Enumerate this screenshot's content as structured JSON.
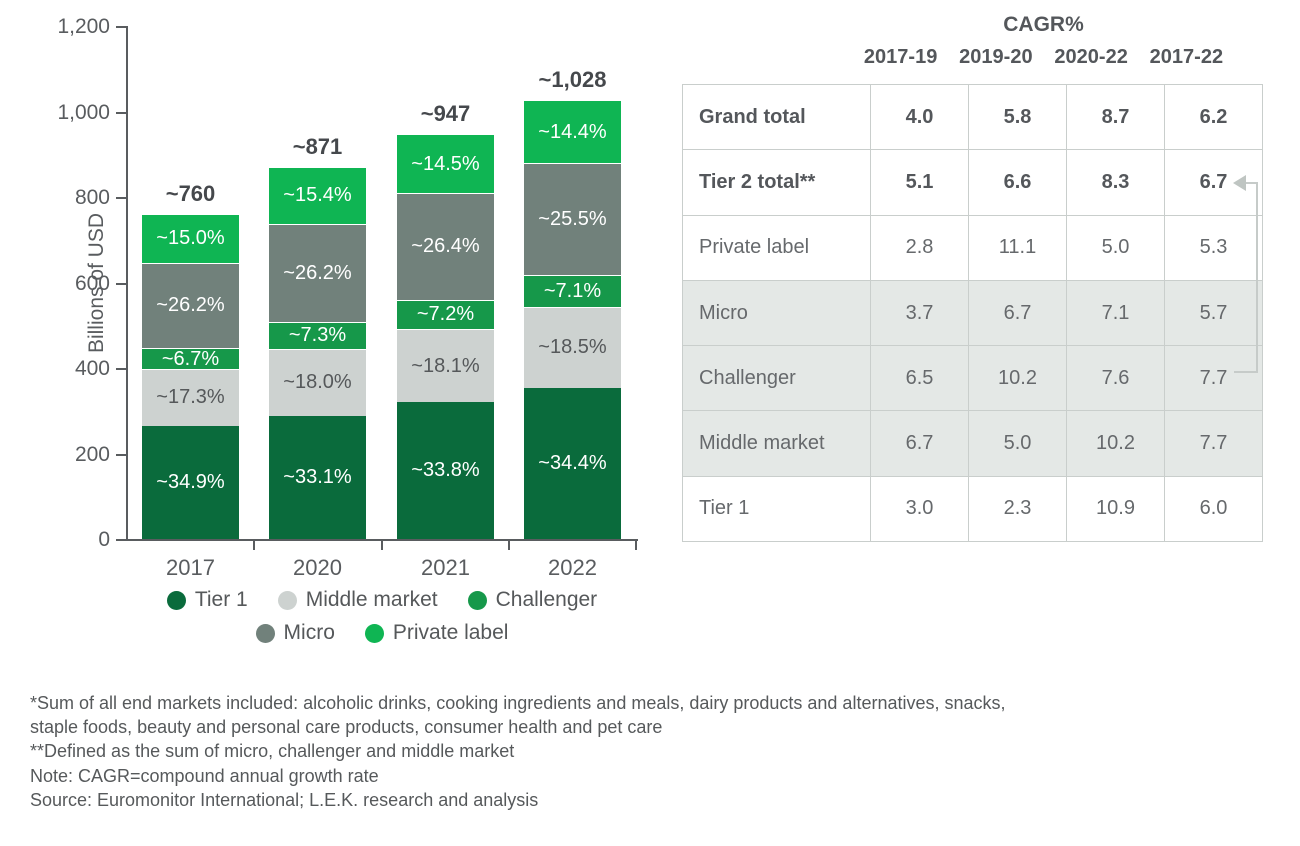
{
  "chart_data": {
    "type": "bar",
    "stacked": true,
    "ylabel": "Billions of USD",
    "ylim": [
      0,
      1200
    ],
    "yticks": [
      0,
      200,
      400,
      600,
      800,
      1000,
      1200
    ],
    "ytick_labels": [
      "0",
      "200",
      "400",
      "600",
      "800",
      "1,000",
      "1,200"
    ],
    "categories": [
      "2017",
      "2020",
      "2021",
      "2022"
    ],
    "totals": [
      760,
      871,
      947,
      1028
    ],
    "total_labels": [
      "~760",
      "~871",
      "~947",
      "~1,028"
    ],
    "series": [
      {
        "name": "Tier 1",
        "color": "#0A6B3C",
        "label_color": "#FFFFFF",
        "pct": [
          34.9,
          33.1,
          33.8,
          34.4
        ],
        "labels": [
          "~34.9%",
          "~33.1%",
          "~33.8%",
          "~34.4%"
        ]
      },
      {
        "name": "Middle market",
        "color": "#CDD2D0",
        "label_color": "#55585A",
        "pct": [
          17.3,
          18.0,
          18.1,
          18.5
        ],
        "labels": [
          "~17.3%",
          "~18.0%",
          "~18.1%",
          "~18.5%"
        ]
      },
      {
        "name": "Challenger",
        "color": "#16984A",
        "label_color": "#FFFFFF",
        "pct": [
          6.7,
          7.3,
          7.2,
          7.1
        ],
        "labels": [
          "~6.7%",
          "~7.3%",
          "~7.2%",
          "~7.1%"
        ]
      },
      {
        "name": "Micro",
        "color": "#71817B",
        "label_color": "#FFFFFF",
        "pct": [
          26.2,
          26.2,
          26.4,
          25.5
        ],
        "labels": [
          "~26.2%",
          "~26.2%",
          "~26.4%",
          "~25.5%"
        ]
      },
      {
        "name": "Private label",
        "color": "#0FB553",
        "label_color": "#FFFFFF",
        "pct": [
          15.0,
          15.4,
          14.5,
          14.4
        ],
        "labels": [
          "~15.0%",
          "~15.4%",
          "~14.5%",
          "~14.4%"
        ]
      }
    ],
    "legend_rows": [
      [
        "Tier 1",
        "Middle market",
        "Challenger"
      ],
      [
        "Micro",
        "Private label"
      ]
    ],
    "legend_position": "bottom"
  },
  "table": {
    "title": "CAGR%",
    "columns": [
      "2017-19",
      "2019-20",
      "2020-22",
      "2017-22"
    ],
    "rows": [
      {
        "label": "Grand total",
        "values": [
          "4.0",
          "5.8",
          "8.7",
          "6.2"
        ],
        "bold": true,
        "highlight": false
      },
      {
        "label": "Tier 2 total**",
        "values": [
          "5.1",
          "6.6",
          "8.3",
          "6.7"
        ],
        "bold": true,
        "highlight": false
      },
      {
        "label": "Private label",
        "values": [
          "2.8",
          "11.1",
          "5.0",
          "5.3"
        ],
        "bold": false,
        "highlight": false
      },
      {
        "label": "Micro",
        "values": [
          "3.7",
          "6.7",
          "7.1",
          "5.7"
        ],
        "bold": false,
        "highlight": true
      },
      {
        "label": "Challenger",
        "values": [
          "6.5",
          "10.2",
          "7.6",
          "7.7"
        ],
        "bold": false,
        "highlight": true
      },
      {
        "label": "Middle market",
        "values": [
          "6.7",
          "5.0",
          "10.2",
          "7.7"
        ],
        "bold": false,
        "highlight": true
      },
      {
        "label": "Tier 1",
        "values": [
          "3.0",
          "2.3",
          "10.9",
          "6.0"
        ],
        "bold": false,
        "highlight": false
      }
    ]
  },
  "footnotes": [
    "*Sum of all end markets included: alcoholic drinks, cooking ingredients and meals, dairy products and alternatives, snacks,",
    "staple foods, beauty and personal care products, consumer health and pet care",
    "**Defined as the sum of micro, challenger and middle market",
    "Note: CAGR=compound annual growth rate",
    "Source:  Euromonitor International; L.E.K. research and analysis"
  ],
  "colors": {
    "axis": "#595C5F",
    "tick_text": "#595C5F",
    "total_text": "#45484C",
    "table_border": "#C9CECC",
    "table_highlight_bg": "#E4E8E6",
    "table_bold_text": "#54575B",
    "table_text": "#66696C",
    "bracket": "#C6CBC9",
    "tier1": "#0A6B3C",
    "middle_market": "#CDD2D0",
    "challenger": "#16984A",
    "micro": "#71817B",
    "private_label": "#0FB553"
  }
}
